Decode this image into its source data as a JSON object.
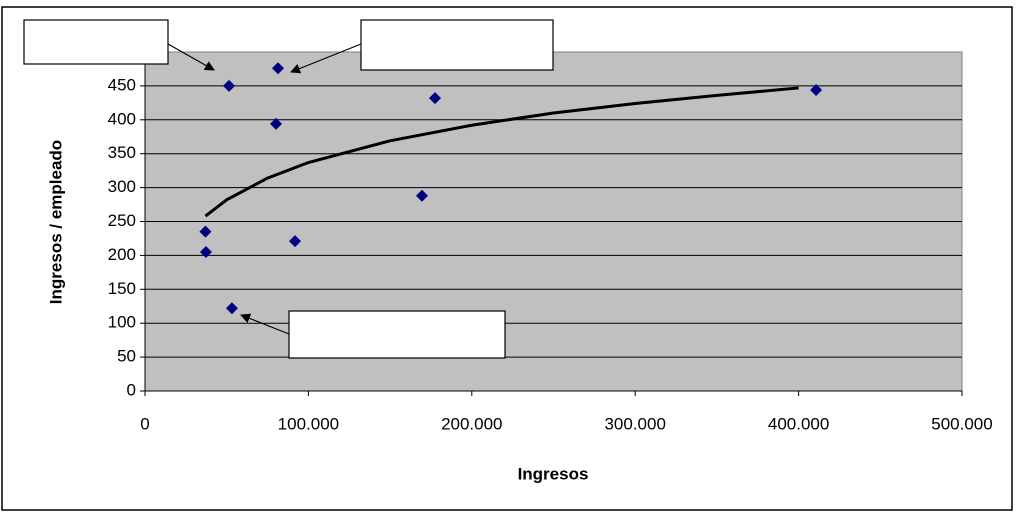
{
  "chart_data": {
    "type": "scatter",
    "x_label": "Ingresos",
    "y_label": "Ingresos / empleado",
    "x": [
      37000,
      37300,
      51400,
      53200,
      81400,
      80200,
      91800,
      169500,
      177500,
      410700
    ],
    "values": [
      235,
      205,
      450,
      122,
      476,
      394,
      221,
      288,
      432,
      444
    ],
    "color": "#000080",
    "trendline": {
      "x": [
        37000,
        50000,
        75000,
        100000,
        150000,
        200000,
        250000,
        300000,
        350000,
        400000
      ],
      "values": [
        258,
        282,
        314,
        337,
        369,
        392,
        410,
        424,
        436,
        447
      ],
      "color": "#000000"
    },
    "xlim": [
      0,
      500000
    ],
    "xticks": [
      0,
      {
        "value": 100000,
        "label": "100.000"
      },
      {
        "value": 200000,
        "label": "200.000"
      },
      {
        "value": 300000,
        "label": "300.000"
      },
      {
        "value": 400000,
        "label": "400.000"
      },
      {
        "value": 500000,
        "label": "500.000"
      }
    ],
    "ylim": [
      0,
      500
    ],
    "yticks": [
      0,
      50,
      100,
      150,
      200,
      250,
      300,
      350,
      400,
      450
    ],
    "grid": true,
    "plot_background": "#c0c0c0"
  }
}
